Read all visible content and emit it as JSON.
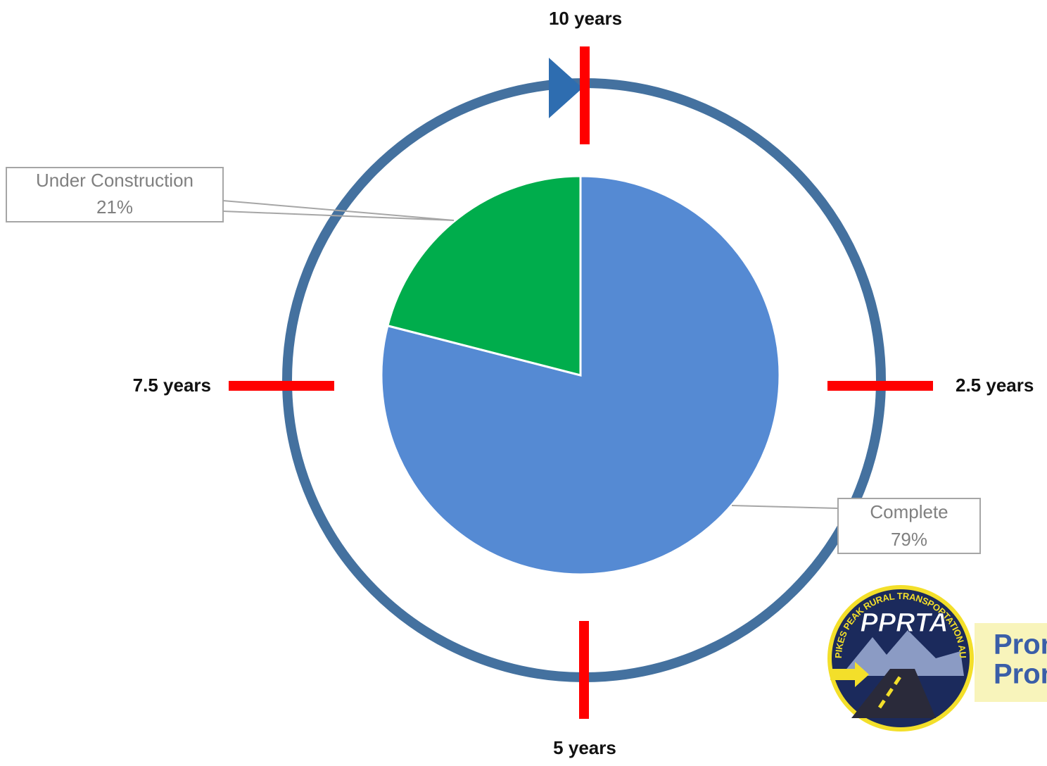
{
  "chart_data": {
    "type": "pie",
    "categories": [
      "Complete",
      "Under Construction"
    ],
    "values": [
      79,
      21
    ],
    "value_labels": [
      "79%",
      "21%"
    ],
    "colors": [
      "#558ad3",
      "#00ad4c"
    ],
    "annotations": [
      "10 years",
      "2.5 years",
      "5 years",
      "7.5 years"
    ]
  },
  "logo": {
    "name": "PPRTA",
    "ring_text": "PIKES PEAK RURAL TRANSPORTATION AUTHORITY",
    "tagline": [
      "Prom",
      "Prom"
    ]
  }
}
